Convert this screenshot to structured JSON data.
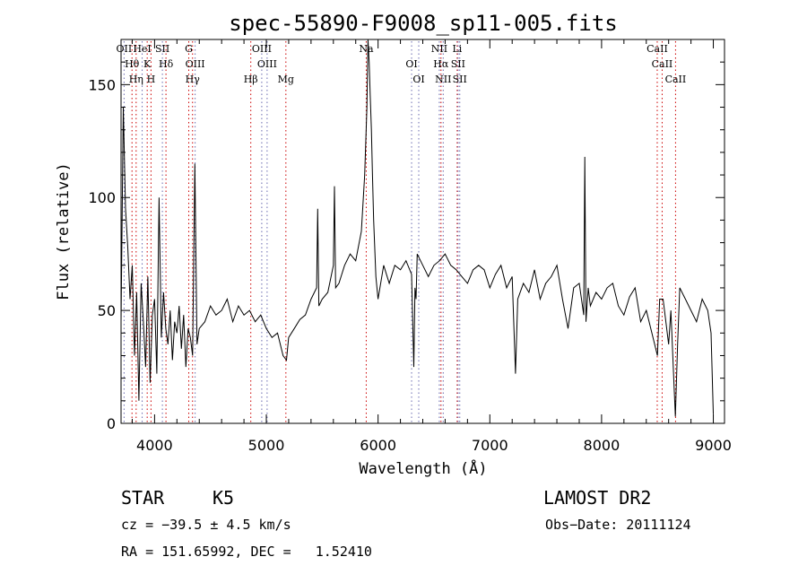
{
  "chart_data": {
    "type": "line",
    "title": "spec-55890-F9008_sp11-005.fits",
    "xlabel": "Wavelength (Å)",
    "ylabel": "Flux (relative)",
    "xlim": [
      3700,
      9100
    ],
    "ylim": [
      0,
      170
    ],
    "xticks": [
      4000,
      5000,
      6000,
      7000,
      8000,
      9000
    ],
    "yticks": [
      0,
      50,
      100,
      150
    ],
    "grid": false,
    "series": [
      {
        "x": [
          3700,
          3720,
          3740,
          3760,
          3780,
          3800,
          3820,
          3840,
          3860,
          3880,
          3900,
          3920,
          3940,
          3960,
          3980,
          4000,
          4020,
          4040,
          4060,
          4080,
          4100,
          4120,
          4140,
          4160,
          4180,
          4200,
          4220,
          4240,
          4260,
          4280,
          4300,
          4320,
          4340,
          4360,
          4380,
          4400,
          4450,
          4500,
          4550,
          4600,
          4650,
          4700,
          4750,
          4800,
          4850,
          4900,
          4950,
          5000,
          5050,
          5100,
          5150,
          5180,
          5200,
          5250,
          5300,
          5350,
          5400,
          5450,
          5460,
          5470,
          5500,
          5550,
          5600,
          5610,
          5620,
          5650,
          5700,
          5750,
          5800,
          5850,
          5880,
          5900,
          5910,
          5920,
          5930,
          5940,
          5950,
          5960,
          5980,
          6000,
          6050,
          6100,
          6150,
          6200,
          6250,
          6300,
          6320,
          6330,
          6340,
          6350,
          6400,
          6450,
          6500,
          6550,
          6600,
          6650,
          6700,
          6750,
          6800,
          6850,
          6900,
          6950,
          7000,
          7050,
          7100,
          7150,
          7200,
          7230,
          7250,
          7300,
          7350,
          7400,
          7450,
          7500,
          7550,
          7600,
          7650,
          7700,
          7750,
          7800,
          7820,
          7840,
          7850,
          7860,
          7880,
          7900,
          7950,
          8000,
          8050,
          8100,
          8150,
          8200,
          8250,
          8300,
          8350,
          8400,
          8450,
          8500,
          8520,
          8550,
          8600,
          8620,
          8650,
          8660,
          8680,
          8700,
          8750,
          8800,
          8850,
          8900,
          8950,
          8980,
          9000
        ],
        "y": [
          45,
          140,
          95,
          78,
          55,
          70,
          30,
          58,
          10,
          62,
          45,
          25,
          65,
          18,
          48,
          55,
          22,
          100,
          38,
          58,
          42,
          35,
          50,
          28,
          45,
          40,
          52,
          33,
          48,
          25,
          42,
          38,
          30,
          115,
          35,
          42,
          45,
          52,
          48,
          50,
          55,
          45,
          52,
          48,
          50,
          45,
          48,
          42,
          38,
          40,
          30,
          28,
          38,
          42,
          46,
          48,
          55,
          60,
          95,
          52,
          55,
          58,
          70,
          105,
          60,
          62,
          70,
          75,
          72,
          85,
          110,
          140,
          170,
          160,
          145,
          130,
          110,
          90,
          65,
          55,
          70,
          62,
          70,
          68,
          72,
          66,
          25,
          60,
          55,
          75,
          70,
          65,
          70,
          72,
          75,
          70,
          68,
          65,
          62,
          68,
          70,
          68,
          60,
          66,
          70,
          60,
          65,
          22,
          55,
          62,
          58,
          68,
          55,
          62,
          65,
          70,
          55,
          42,
          60,
          62,
          55,
          48,
          118,
          45,
          60,
          52,
          58,
          55,
          60,
          62,
          52,
          48,
          56,
          60,
          45,
          50,
          40,
          30,
          55,
          55,
          35,
          50,
          15,
          3,
          35,
          60,
          55,
          50,
          45,
          55,
          50,
          40,
          4
        ]
      }
    ],
    "lines": [
      {
        "label": "OII",
        "x": 3727,
        "kind": "emission"
      },
      {
        "label": "Hθ",
        "x": 3798,
        "kind": "absorption"
      },
      {
        "label": "Hη",
        "x": 3835,
        "kind": "absorption"
      },
      {
        "label": "HeI",
        "x": 3889,
        "kind": "emission"
      },
      {
        "label": "K",
        "x": 3934,
        "kind": "absorption"
      },
      {
        "label": "H",
        "x": 3968,
        "kind": "absorption"
      },
      {
        "label": "SII",
        "x": 4070,
        "kind": "emission"
      },
      {
        "label": "Hδ",
        "x": 4102,
        "kind": "absorption"
      },
      {
        "label": "Hγ",
        "x": 4340,
        "kind": "absorption"
      },
      {
        "label": "G",
        "x": 4306,
        "kind": "absorption"
      },
      {
        "label": "OIII",
        "x": 4363,
        "kind": "emission"
      },
      {
        "label": "Hβ",
        "x": 4861,
        "kind": "absorption"
      },
      {
        "label": "OIII",
        "x": 4959,
        "kind": "emission"
      },
      {
        "label": "OIII",
        "x": 5007,
        "kind": "emission"
      },
      {
        "label": "Mg",
        "x": 5175,
        "kind": "absorption"
      },
      {
        "label": "Na",
        "x": 5894,
        "kind": "absorption"
      },
      {
        "label": "OI",
        "x": 6300,
        "kind": "emission"
      },
      {
        "label": "OI",
        "x": 6364,
        "kind": "emission"
      },
      {
        "label": "NII",
        "x": 6548,
        "kind": "emission"
      },
      {
        "label": "Hα",
        "x": 6563,
        "kind": "absorption"
      },
      {
        "label": "NII",
        "x": 6583,
        "kind": "emission"
      },
      {
        "label": "Li",
        "x": 6708,
        "kind": "absorption"
      },
      {
        "label": "SII",
        "x": 6716,
        "kind": "emission"
      },
      {
        "label": "SII",
        "x": 6731,
        "kind": "emission"
      },
      {
        "label": "CaII",
        "x": 8498,
        "kind": "absorption"
      },
      {
        "label": "CaII",
        "x": 8542,
        "kind": "absorption"
      },
      {
        "label": "CaII",
        "x": 8662,
        "kind": "absorption"
      }
    ]
  },
  "info": {
    "object_class": "STAR",
    "subclass": "K5",
    "survey": "LAMOST DR2",
    "cz": "cz = −39.5 ± 4.5 km/s",
    "obs_date": "Obs−Date: 20111124",
    "coords": "RA = 151.65992, DEC =   1.52410"
  },
  "colors": {
    "spectrum": "#000000",
    "absorption_line": "#cc0000",
    "emission_line": "#6b6bb0",
    "axes": "#000000"
  }
}
